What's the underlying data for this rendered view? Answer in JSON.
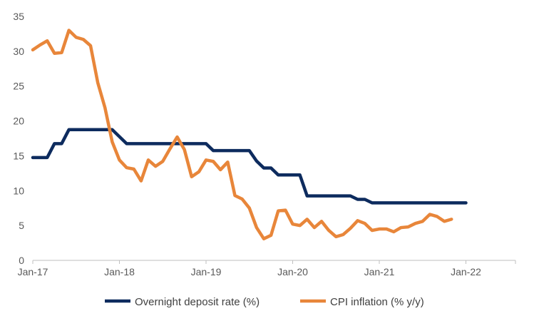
{
  "chart_data": {
    "type": "line",
    "title": "",
    "xlabel": "",
    "ylabel": "",
    "x_start": "2017-01",
    "x_tick_labels": [
      "Jan-17",
      "Jan-18",
      "Jan-19",
      "Jan-20",
      "Jan-21",
      "Jan-22"
    ],
    "y_ticks": [
      0,
      5,
      10,
      15,
      20,
      25,
      30,
      35
    ],
    "ylim": [
      0,
      35
    ],
    "grid": false,
    "legend_position": "bottom",
    "series": [
      {
        "name": "Overnight deposit rate (%)",
        "color": "#0d2b5e",
        "values": [
          14.75,
          14.75,
          14.75,
          16.75,
          16.75,
          18.75,
          18.75,
          18.75,
          18.75,
          18.75,
          18.75,
          18.75,
          17.75,
          16.75,
          16.75,
          16.75,
          16.75,
          16.75,
          16.75,
          16.75,
          16.75,
          16.75,
          16.75,
          16.75,
          16.75,
          15.75,
          15.75,
          15.75,
          15.75,
          15.75,
          15.75,
          14.25,
          13.25,
          13.25,
          12.25,
          12.25,
          12.25,
          12.25,
          9.25,
          9.25,
          9.25,
          9.25,
          9.25,
          9.25,
          9.25,
          8.75,
          8.75,
          8.25,
          8.25,
          8.25,
          8.25,
          8.25,
          8.25,
          8.25,
          8.25,
          8.25,
          8.25,
          8.25,
          8.25,
          8.25,
          8.25
        ]
      },
      {
        "name": "CPI inflation (% y/y)",
        "color": "#e8863a",
        "values": [
          30.2,
          30.9,
          31.5,
          29.7,
          29.8,
          33.0,
          32.0,
          31.7,
          30.8,
          25.5,
          21.9,
          17.0,
          14.4,
          13.3,
          13.1,
          11.4,
          14.4,
          13.5,
          14.2,
          16.0,
          17.7,
          15.9,
          12.0,
          12.7,
          14.4,
          14.2,
          13.0,
          14.1,
          9.3,
          8.8,
          7.5,
          4.7,
          3.1,
          3.6,
          7.1,
          7.2,
          5.2,
          5.0,
          5.9,
          4.7,
          5.6,
          4.3,
          3.4,
          3.7,
          4.6,
          5.7,
          5.3,
          4.3,
          4.5,
          4.5,
          4.1,
          4.7,
          4.8,
          5.3,
          5.6,
          6.6,
          6.3,
          5.6,
          5.9
        ]
      }
    ]
  }
}
